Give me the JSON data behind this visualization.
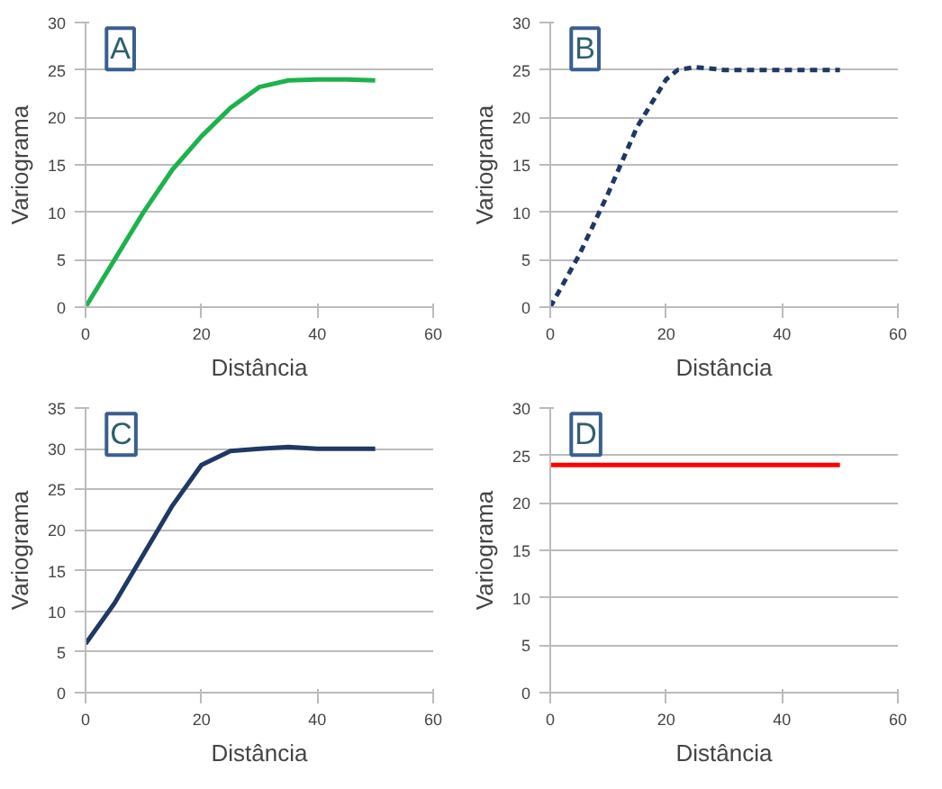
{
  "chart_data": [
    {
      "type": "line",
      "title": "A",
      "xlabel": "Distância",
      "ylabel": "Variograma",
      "x": [
        0,
        5,
        10,
        15,
        20,
        25,
        30,
        35,
        40,
        45,
        50
      ],
      "series": [
        {
          "color": "#1db24d",
          "values": [
            0,
            5,
            10,
            14.5,
            18,
            21,
            23.2,
            23.9,
            24,
            24,
            23.9
          ]
        }
      ],
      "xlim": [
        0,
        60
      ],
      "xticks": [
        0,
        20,
        40,
        60
      ],
      "ylim": [
        0,
        30
      ],
      "yticks": [
        0,
        5,
        10,
        15,
        20,
        25,
        30
      ],
      "grid": "y",
      "line_style": "solid"
    },
    {
      "type": "line",
      "title": "B",
      "xlabel": "Distância",
      "ylabel": "Variograma",
      "x": [
        0,
        5,
        10,
        15,
        20,
        22,
        25,
        30,
        40,
        50
      ],
      "series": [
        {
          "color": "#1f3864",
          "values": [
            0,
            5.5,
            12,
            19,
            24,
            25,
            25.3,
            25,
            25,
            25
          ]
        }
      ],
      "xlim": [
        0,
        60
      ],
      "xticks": [
        0,
        20,
        40,
        60
      ],
      "ylim": [
        0,
        30
      ],
      "yticks": [
        0,
        5,
        10,
        15,
        20,
        25,
        30
      ],
      "grid": "y",
      "line_style": "dashed"
    },
    {
      "type": "line",
      "title": "C",
      "xlabel": "Distância",
      "ylabel": "Variograma",
      "x": [
        0,
        5,
        10,
        15,
        20,
        25,
        30,
        35,
        40,
        50
      ],
      "series": [
        {
          "color": "#1f3864",
          "values": [
            6,
            11,
            17,
            23,
            28,
            29.7,
            30,
            30.2,
            30,
            30
          ]
        }
      ],
      "xlim": [
        0,
        60
      ],
      "xticks": [
        0,
        20,
        40,
        60
      ],
      "ylim": [
        0,
        35
      ],
      "yticks": [
        0,
        5,
        10,
        15,
        20,
        25,
        30,
        35
      ],
      "grid": "y",
      "line_style": "solid"
    },
    {
      "type": "line",
      "title": "D",
      "xlabel": "Distância",
      "ylabel": "Variograma",
      "x": [
        0,
        50
      ],
      "series": [
        {
          "color": "#ff0000",
          "values": [
            24,
            24
          ]
        }
      ],
      "xlim": [
        0,
        60
      ],
      "xticks": [
        0,
        20,
        40,
        60
      ],
      "ylim": [
        0,
        30
      ],
      "yticks": [
        0,
        5,
        10,
        15,
        20,
        25,
        30
      ],
      "grid": "y",
      "line_style": "solid"
    }
  ]
}
